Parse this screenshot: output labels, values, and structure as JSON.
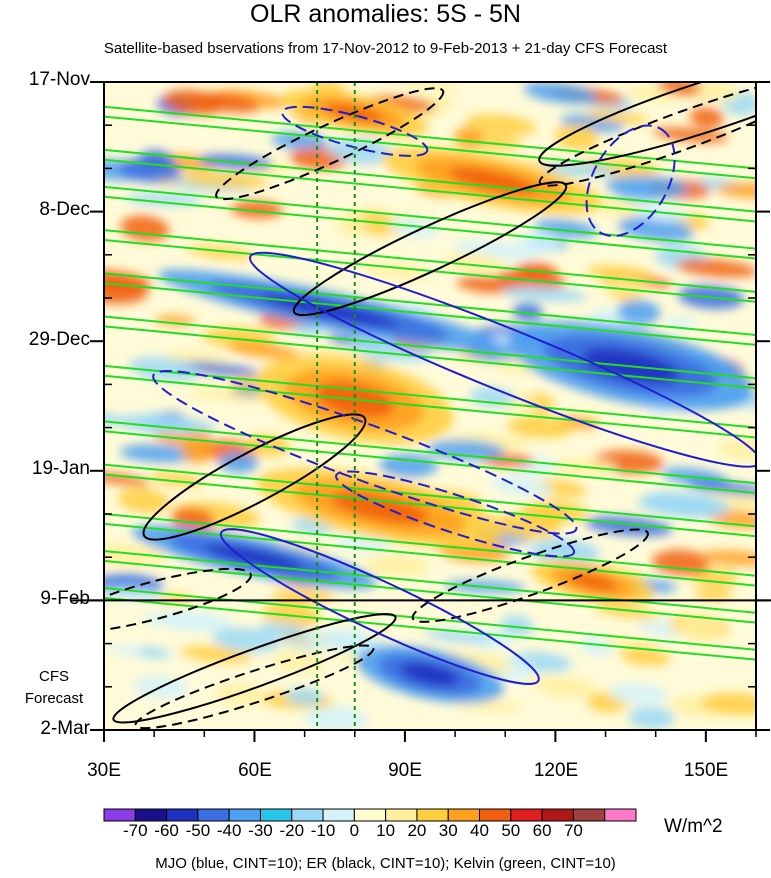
{
  "chart_data": {
    "type": "heatmap",
    "title": "OLR anomalies: 5S - 5N",
    "subtitle": "Satellite-based bservations from 17-Nov-2012 to 9-Feb-2013 + 21-day CFS Forecast",
    "x_ticks": [
      "30E",
      "60E",
      "90E",
      "120E",
      "150E"
    ],
    "x_tick_values": [
      30,
      60,
      90,
      120,
      150
    ],
    "xlim": [
      30,
      160
    ],
    "y_ticks": [
      "17-Nov",
      "8-Dec",
      "29-Dec",
      "19-Jan",
      "9-Feb",
      "2-Mar"
    ],
    "y_tick_days": [
      0,
      21,
      42,
      63,
      84,
      105
    ],
    "ylim_days": [
      0,
      105
    ],
    "y_reversed": true,
    "observation_end_line": "9-Feb",
    "forecast_label": "CFS Forecast",
    "reference_lines_lon": [
      72.5,
      80
    ],
    "colorbar": {
      "labels": [
        "-70",
        "-60",
        "-50",
        "-40",
        "-30",
        "-20",
        "-10",
        "0",
        "10",
        "20",
        "30",
        "40",
        "50",
        "60",
        "70"
      ],
      "colors": [
        "#8b3ce6",
        "#1a108c",
        "#1f2fc0",
        "#3b6ee0",
        "#4ea0f0",
        "#29c4ec",
        "#9bd8f6",
        "#d4f2fa",
        "#fffdd0",
        "#fff0a0",
        "#ffce40",
        "#ffa020",
        "#f06010",
        "#e02020",
        "#b01818",
        "#a04040",
        "#ff78c8"
      ],
      "units": "W/m^2"
    },
    "anomaly_features": [
      {
        "sign": "negative",
        "lon": [
          40,
          110
        ],
        "day": [
          34,
          40
        ]
      },
      {
        "sign": "negative",
        "lon": [
          110,
          160
        ],
        "day": [
          40,
          52
        ]
      },
      {
        "sign": "negative",
        "lon": [
          35,
          85
        ],
        "day": [
          74,
          80
        ]
      },
      {
        "sign": "negative",
        "lon": [
          80,
          110
        ],
        "day": [
          92,
          100
        ]
      },
      {
        "sign": "positive",
        "lon": [
          60,
          100
        ],
        "day": [
          45,
          58
        ]
      },
      {
        "sign": "positive",
        "lon": [
          65,
          95
        ],
        "day": [
          2,
          8
        ]
      },
      {
        "sign": "positive",
        "lon": [
          85,
          130
        ],
        "day": [
          12,
          20
        ]
      },
      {
        "sign": "positive",
        "lon": [
          60,
          110
        ],
        "day": [
          64,
          74
        ]
      },
      {
        "sign": "positive",
        "lon": [
          115,
          140
        ],
        "day": [
          78,
          84
        ]
      }
    ],
    "contour_legend": "MJO (blue, CINT=10); ER (black, CINT=10); Kelvin (green, CINT=10)",
    "contour_series": [
      {
        "name": "MJO",
        "color": "#1f1fd0",
        "cint": 10
      },
      {
        "name": "ER",
        "color": "#000000",
        "cint": 10
      },
      {
        "name": "Kelvin",
        "color": "#22dd22",
        "cint": 10
      }
    ]
  }
}
